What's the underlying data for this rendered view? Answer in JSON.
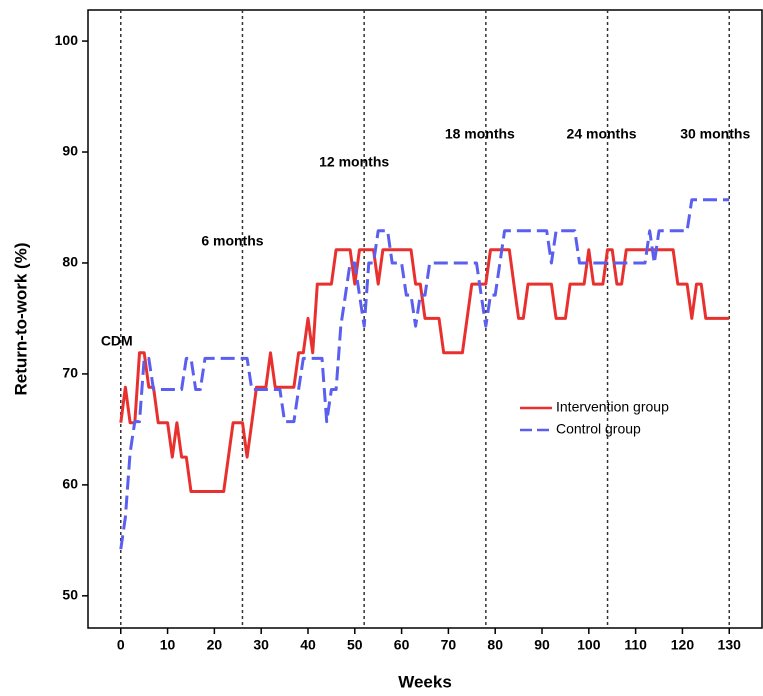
{
  "chart_data": {
    "type": "line",
    "xlabel": "Weeks",
    "ylabel": "Return-to-work (%)",
    "x": [
      0,
      1,
      2,
      3,
      4,
      5,
      6,
      7,
      8,
      9,
      10,
      11,
      12,
      13,
      14,
      15,
      16,
      17,
      18,
      19,
      20,
      21,
      22,
      23,
      24,
      25,
      26,
      27,
      28,
      29,
      30,
      31,
      32,
      33,
      34,
      35,
      36,
      37,
      38,
      39,
      40,
      41,
      42,
      43,
      44,
      45,
      46,
      47,
      48,
      49,
      50,
      51,
      52,
      53,
      54,
      55,
      56,
      57,
      58,
      59,
      60,
      61,
      62,
      63,
      64,
      65,
      66,
      67,
      68,
      69,
      70,
      71,
      72,
      73,
      74,
      75,
      76,
      77,
      78,
      79,
      80,
      81,
      82,
      83,
      84,
      85,
      86,
      87,
      88,
      89,
      90,
      91,
      92,
      93,
      94,
      95,
      96,
      97,
      98,
      99,
      100,
      101,
      102,
      103,
      104,
      105,
      106,
      107,
      108,
      109,
      110,
      111,
      112,
      113,
      114,
      115,
      116,
      117,
      118,
      119,
      120,
      121,
      122,
      123,
      124,
      125,
      126,
      127,
      128,
      129,
      130
    ],
    "series": [
      {
        "name": "Intervention group",
        "color": "#e8312f",
        "dash": false,
        "values": [
          65.6,
          68.8,
          65.6,
          65.6,
          71.9,
          71.9,
          68.8,
          68.8,
          65.6,
          65.6,
          65.6,
          62.5,
          65.6,
          62.5,
          62.5,
          59.4,
          59.4,
          59.4,
          59.4,
          59.4,
          59.4,
          59.4,
          59.4,
          62.5,
          65.6,
          65.6,
          65.6,
          62.5,
          65.6,
          68.8,
          68.8,
          68.8,
          71.9,
          68.8,
          68.8,
          68.8,
          68.8,
          68.8,
          71.9,
          71.9,
          75,
          71.9,
          78.1,
          78.1,
          78.1,
          78.1,
          81.2,
          81.2,
          81.2,
          81.2,
          78.1,
          81.2,
          81.2,
          81.2,
          81.2,
          78.1,
          81.2,
          81.2,
          81.2,
          81.2,
          81.2,
          81.2,
          81.2,
          78.1,
          78.1,
          75,
          75,
          75,
          75,
          71.9,
          71.9,
          71.9,
          71.9,
          71.9,
          75,
          78.1,
          78.1,
          78.1,
          78.1,
          81.2,
          81.2,
          81.2,
          81.2,
          81.2,
          78.1,
          75,
          75,
          78.1,
          78.1,
          78.1,
          78.1,
          78.1,
          78.1,
          75,
          75,
          75,
          78.1,
          78.1,
          78.1,
          78.1,
          81.2,
          78.1,
          78.1,
          78.1,
          81.2,
          81.2,
          78.1,
          78.1,
          81.2,
          81.2,
          81.2,
          81.2,
          81.2,
          81.2,
          81.2,
          81.2,
          81.2,
          81.2,
          81.2,
          78.1,
          78.1,
          78.1,
          75,
          78.1,
          78.1,
          75,
          75,
          75,
          75,
          75,
          75
        ]
      },
      {
        "name": "Control group",
        "color": "#5a5ff0",
        "dash": true,
        "values": [
          54.2,
          57.1,
          62.9,
          65.7,
          65.7,
          71.4,
          71.4,
          68.6,
          68.6,
          68.6,
          68.6,
          68.6,
          68.6,
          68.6,
          71.4,
          71.4,
          68.6,
          68.6,
          71.4,
          71.4,
          71.4,
          71.4,
          71.4,
          71.4,
          71.4,
          71.4,
          71.4,
          71.4,
          68.6,
          68.6,
          68.6,
          68.6,
          68.6,
          68.6,
          68.6,
          65.7,
          65.7,
          65.7,
          68.6,
          71.4,
          71.4,
          71.4,
          71.4,
          71.4,
          65.7,
          68.6,
          68.6,
          74.3,
          77.1,
          80,
          80,
          77.1,
          74.3,
          80,
          80,
          82.9,
          82.9,
          82.9,
          80,
          80,
          80,
          77.1,
          77.1,
          74.3,
          77.1,
          77.1,
          80,
          80,
          80,
          80,
          80,
          80,
          80,
          80,
          80,
          80,
          80,
          77.1,
          74.3,
          77.1,
          77.1,
          80,
          82.9,
          82.9,
          82.9,
          82.9,
          82.9,
          82.9,
          82.9,
          82.9,
          82.9,
          82.9,
          80,
          82.9,
          82.9,
          82.9,
          82.9,
          82.9,
          80,
          80,
          80,
          80,
          80,
          80,
          80,
          80,
          80,
          80,
          80,
          80,
          80,
          80,
          80,
          82.9,
          80,
          82.9,
          82.9,
          82.9,
          82.9,
          82.9,
          82.9,
          82.9,
          85.7,
          85.7,
          85.7,
          85.7,
          85.7,
          85.7,
          85.7,
          85.7,
          85.7
        ]
      }
    ],
    "annotations": [
      {
        "x": 0,
        "label": "CDM"
      },
      {
        "x": 26,
        "label": "6 months"
      },
      {
        "x": 52,
        "label": "12 months"
      },
      {
        "x": 78,
        "label": "18 months"
      },
      {
        "x": 104,
        "label": "24 months"
      },
      {
        "x": 130,
        "label": "30 months"
      }
    ],
    "xlim": [
      -7,
      137
    ],
    "ylim": [
      47.1,
      102.8
    ],
    "xticks": [
      0,
      10,
      20,
      30,
      40,
      50,
      60,
      70,
      80,
      90,
      100,
      110,
      120,
      130
    ],
    "yticks": [
      50,
      60,
      70,
      80,
      90,
      100
    ],
    "grid": false,
    "legend": "right"
  }
}
